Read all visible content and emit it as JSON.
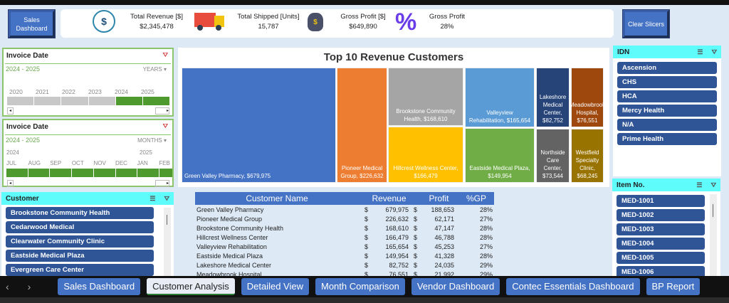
{
  "buttons": {
    "sales_dashboard": "Sales Dashboard",
    "clear_slicers": "Clear Slicers"
  },
  "kpis": [
    {
      "label": "Total Revenue [$]",
      "value": "$2,345,478",
      "icon": "revenue-chart-icon"
    },
    {
      "label": "Total Shipped [Units]",
      "value": "15,787",
      "icon": "truck-icon"
    },
    {
      "label": "Gross Profit [$]",
      "value": "$649,890",
      "icon": "money-bag-icon"
    },
    {
      "label": "Gross Profit",
      "value": "28%",
      "icon": "percent-icon"
    }
  ],
  "timeline_years": {
    "title": "Invoice Date",
    "range": "2024 - 2025",
    "level": "YEARS",
    "labels": [
      "2020",
      "2021",
      "2022",
      "2023",
      "2024",
      "2025"
    ],
    "selected": [
      false,
      false,
      false,
      false,
      true,
      true
    ]
  },
  "timeline_months": {
    "title": "Invoice Date",
    "range": "2024 - 2025",
    "level": "MONTHS",
    "year_labels": [
      "2024",
      "2025"
    ],
    "labels": [
      "JUL",
      "AUG",
      "SEP",
      "OCT",
      "NOV",
      "DEC",
      "JAN",
      "FEB"
    ]
  },
  "customer_slicer": {
    "title": "Customer",
    "items": [
      "Brookstone Community Health",
      "Cedarwood Medical",
      "Clearwater Community Clinic",
      "Eastside Medical Plaza",
      "Evergreen Care Center"
    ]
  },
  "idn_slicer": {
    "title": "IDN",
    "items": [
      "Ascension",
      "CHS",
      "HCA",
      "Mercy Health",
      "N/A",
      "Prime Health"
    ]
  },
  "item_slicer": {
    "title": "Item No.",
    "items": [
      "MED-1001",
      "MED-1002",
      "MED-1003",
      "MED-1004",
      "MED-1005",
      "MED-1006"
    ]
  },
  "chart_data": {
    "type": "treemap",
    "title": "Top 10 Revenue Customers",
    "categories": [
      "Green Valley Pharmacy",
      "Pioneer Medical Group",
      "Brookstone Community Health",
      "Hillcrest Wellness Center",
      "Valleyview Rehabilitation",
      "Eastside Medical Plaza",
      "Lakeshore Medical Center",
      "Northside Care Center",
      "Meadowbrook Hospital",
      "Westfield Specialty Clinic"
    ],
    "values": [
      679975,
      226632,
      168610,
      166479,
      165654,
      149954,
      82752,
      73544,
      76551,
      68245
    ],
    "labels": [
      "Green Valley Pharmacy,  $679,975",
      "Pioneer Medical Group,  $226,632",
      "Brookstone Community Health,  $168,610",
      "Hillcrest Wellness Center, $166,479",
      "Valleyview Rehabilitation, $165,654",
      "Eastside Medical Plaza, $149,954",
      "Lakeshore Medical Center, $82,752",
      "Northside Care Center, $73,544",
      "Meadowbrook Hospital, $76,551",
      "Westfield Specialty Clinic, $68,245"
    ],
    "colors": [
      "#4472c4",
      "#ed7d31",
      "#a5a5a5",
      "#ffc000",
      "#5b9bd5",
      "#70ad47",
      "#264478",
      "#636363",
      "#9e480e",
      "#997300"
    ]
  },
  "table": {
    "headers": [
      "Customer Name",
      "Revenue",
      "Profit",
      "%GP"
    ],
    "rows": [
      [
        "Green Valley Pharmacy",
        "$",
        "679,975",
        "$",
        "188,653",
        "28%"
      ],
      [
        "Pioneer Medical Group",
        "$",
        "226,632",
        "$",
        "62,171",
        "27%"
      ],
      [
        "Brookstone Community Health",
        "$",
        "168,610",
        "$",
        "47,147",
        "28%"
      ],
      [
        "Hillcrest Wellness Center",
        "$",
        "166,479",
        "$",
        "46,788",
        "28%"
      ],
      [
        "Valleyview Rehabilitation",
        "$",
        "165,654",
        "$",
        "45,253",
        "27%"
      ],
      [
        "Eastside Medical Plaza",
        "$",
        "149,954",
        "$",
        "41,328",
        "28%"
      ],
      [
        "Lakeshore Medical Center",
        "$",
        "82,752",
        "$",
        "24,035",
        "29%"
      ],
      [
        "Meadowbrook Hospital",
        "$",
        "76,551",
        "$",
        "21,992",
        "29%"
      ]
    ]
  },
  "sheet_tabs": [
    "Sales Dashboard",
    "Customer Analysis",
    "Detailed View",
    "Month Comparison",
    "Vendor Dashboard",
    "Contec Essentials Dashboard",
    "BP Report"
  ],
  "active_tab": "Customer Analysis"
}
